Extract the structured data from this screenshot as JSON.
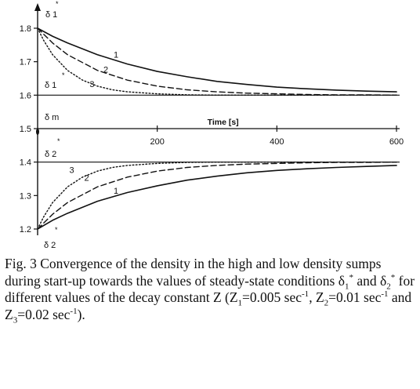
{
  "chart_data": {
    "type": "line",
    "xlabel": "Time [s]",
    "xlim": [
      0,
      620
    ],
    "ylim": [
      1.19,
      1.83
    ],
    "x_ticks": [
      "200",
      "400",
      "600"
    ],
    "x_tick_values": [
      200,
      400,
      600
    ],
    "y_ticks": [
      "1.8",
      "1.7",
      "1.6",
      "1.5",
      "1.4",
      "1.3",
      "1.2"
    ],
    "y_tick_values": [
      1.8,
      1.7,
      1.6,
      1.5,
      1.4,
      1.3,
      1.2
    ],
    "grid": false,
    "reference_lines": [
      {
        "name": "δ1*",
        "y": 1.6
      },
      {
        "name": "δm",
        "y": 1.5
      },
      {
        "name": "δ2*",
        "y": 1.4
      }
    ],
    "series": [
      {
        "name": "1",
        "group": "high",
        "x": [
          0,
          25,
          50,
          100,
          150,
          200,
          250,
          300,
          350,
          400,
          450,
          500,
          550,
          600
        ],
        "values": [
          1.8,
          1.776,
          1.756,
          1.721,
          1.693,
          1.671,
          1.655,
          1.641,
          1.632,
          1.624,
          1.619,
          1.615,
          1.612,
          1.61
        ]
      },
      {
        "name": "2",
        "group": "high",
        "x": [
          0,
          25,
          50,
          100,
          150,
          200,
          250,
          300,
          350,
          400,
          450,
          500,
          550,
          600
        ],
        "values": [
          1.8,
          1.756,
          1.721,
          1.674,
          1.645,
          1.627,
          1.616,
          1.61,
          1.606,
          1.604,
          1.602,
          1.601,
          1.601,
          1.6
        ]
      },
      {
        "name": "3",
        "group": "high",
        "x": [
          0,
          10,
          25,
          50,
          75,
          100,
          125,
          150,
          200,
          250,
          300,
          400,
          600
        ],
        "values": [
          1.8,
          1.764,
          1.721,
          1.674,
          1.645,
          1.627,
          1.616,
          1.61,
          1.604,
          1.601,
          1.6,
          1.6,
          1.6
        ]
      },
      {
        "name": "1",
        "group": "low",
        "x": [
          0,
          25,
          50,
          100,
          150,
          200,
          250,
          300,
          350,
          400,
          450,
          500,
          550,
          600
        ],
        "values": [
          1.2,
          1.226,
          1.247,
          1.283,
          1.309,
          1.329,
          1.346,
          1.358,
          1.368,
          1.375,
          1.38,
          1.384,
          1.387,
          1.39
        ]
      },
      {
        "name": "2",
        "group": "low",
        "x": [
          0,
          25,
          50,
          100,
          150,
          200,
          250,
          300,
          350,
          400,
          450,
          500,
          550,
          600
        ],
        "values": [
          1.2,
          1.244,
          1.279,
          1.326,
          1.355,
          1.373,
          1.384,
          1.39,
          1.394,
          1.396,
          1.398,
          1.399,
          1.399,
          1.4
        ]
      },
      {
        "name": "3",
        "group": "low",
        "x": [
          0,
          10,
          25,
          50,
          75,
          100,
          125,
          150,
          200,
          250,
          300,
          400,
          600
        ],
        "values": [
          1.2,
          1.236,
          1.279,
          1.326,
          1.355,
          1.373,
          1.384,
          1.39,
          1.396,
          1.399,
          1.4,
          1.4,
          1.4
        ]
      }
    ],
    "annotations": [
      "δ 1",
      "*",
      "δ 1",
      "*",
      "δ m",
      "δ 2",
      "*",
      "δ 2",
      "*"
    ]
  },
  "caption": {
    "text_1": "Fig. 3  Convergence of the density in the high and low density sumps during start-up towards the values of steady-state conditions δ",
    "sub_1": "1",
    "sup_star_1": "*",
    "text_2": " and δ",
    "sub_2": "2",
    "sup_star_2": "*",
    "text_3": " for different values of the decay constant Z (Z",
    "sub_z1": "1",
    "text_4": "=0.005 sec",
    "sup_neg1_a": "-1",
    "text_5": ", Z",
    "sub_z2": "2",
    "text_6": "=0.01 sec",
    "sup_neg1_b": "-1",
    "text_7": " and Z",
    "sub_z3": "3",
    "text_8": "=0.02 sec",
    "sup_neg1_c": "-1",
    "text_9": ")."
  }
}
